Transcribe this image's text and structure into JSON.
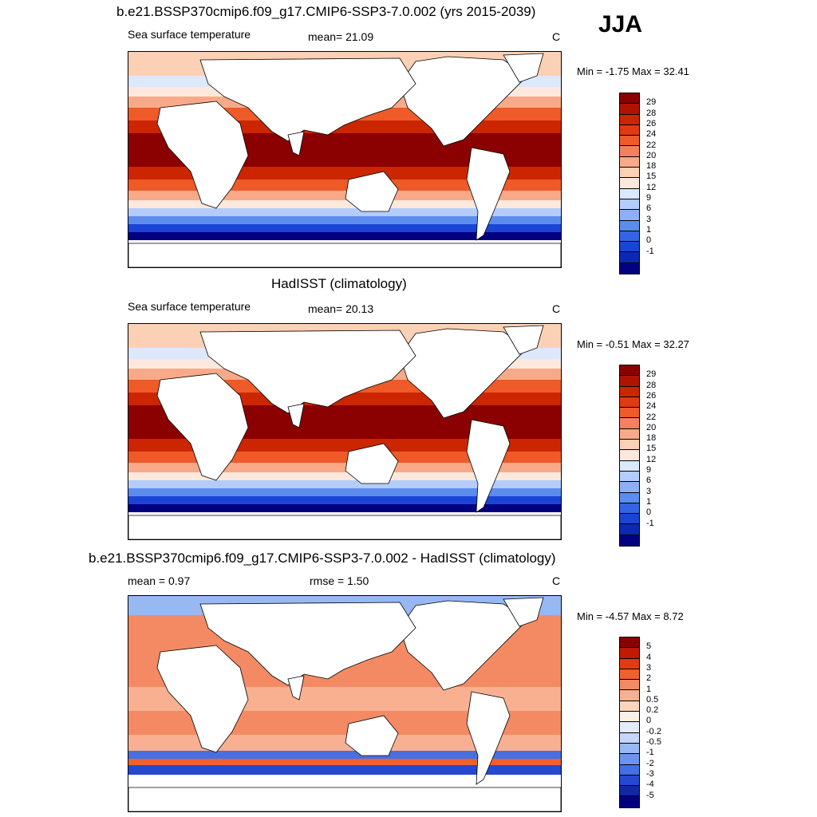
{
  "season": "JJA",
  "panels": [
    {
      "title": "b.e21.BSSP370cmip6.f09_g17.CMIP6-SSP3-7.0.002 (yrs 2015-2039)",
      "left_label": "Sea surface temperature",
      "center_label": "mean=  21.09",
      "unit": "C",
      "minmax": "Min =  -1.75 Max =  32.41",
      "kind": "abs",
      "colorbar_labels": [
        "29",
        "28",
        "26",
        "24",
        "22",
        "20",
        "18",
        "15",
        "12",
        "9",
        "6",
        "3",
        "1",
        "0",
        "-1"
      ]
    },
    {
      "title": "HadISST (climatology)",
      "left_label": "Sea surface temperature",
      "center_label": "mean=  20.13",
      "unit": "C",
      "minmax": "Min =  -0.51 Max =  32.27",
      "kind": "abs",
      "colorbar_labels": [
        "29",
        "28",
        "26",
        "24",
        "22",
        "20",
        "18",
        "15",
        "12",
        "9",
        "6",
        "3",
        "1",
        "0",
        "-1"
      ]
    },
    {
      "title": "b.e21.BSSP370cmip6.f09_g17.CMIP6-SSP3-7.0.002 - HadISST (climatology)",
      "left_label": "mean =   0.97",
      "center_label": "rmse =   1.50",
      "unit": "C",
      "minmax": "Min =  -4.57 Max =   8.72",
      "kind": "diff",
      "colorbar_labels": [
        "5",
        "4",
        "3",
        "2",
        "1",
        "0.5",
        "0.2",
        "0",
        "-0.2",
        "-0.5",
        "-1",
        "-2",
        "-3",
        "-4",
        "-5"
      ]
    }
  ],
  "colors": {
    "abs": [
      "#8b0000",
      "#b01200",
      "#cc2600",
      "#e03a10",
      "#ee5a28",
      "#f48060",
      "#f8aa88",
      "#fcd0b4",
      "#fce8dc",
      "#dce8fc",
      "#b4ccfa",
      "#8cb0f4",
      "#5c8cee",
      "#3464e4",
      "#1c44d4",
      "#0c28b4",
      "#000080"
    ],
    "diff": [
      "#8b0000",
      "#c01a00",
      "#e03c10",
      "#f06030",
      "#f48a64",
      "#f8b090",
      "#fcd4bc",
      "#fdf0e6",
      "#e4ecfc",
      "#c4d6fa",
      "#98b8f4",
      "#6c94ec",
      "#4470e4",
      "#2448d0",
      "#1028a8",
      "#000080"
    ]
  }
}
